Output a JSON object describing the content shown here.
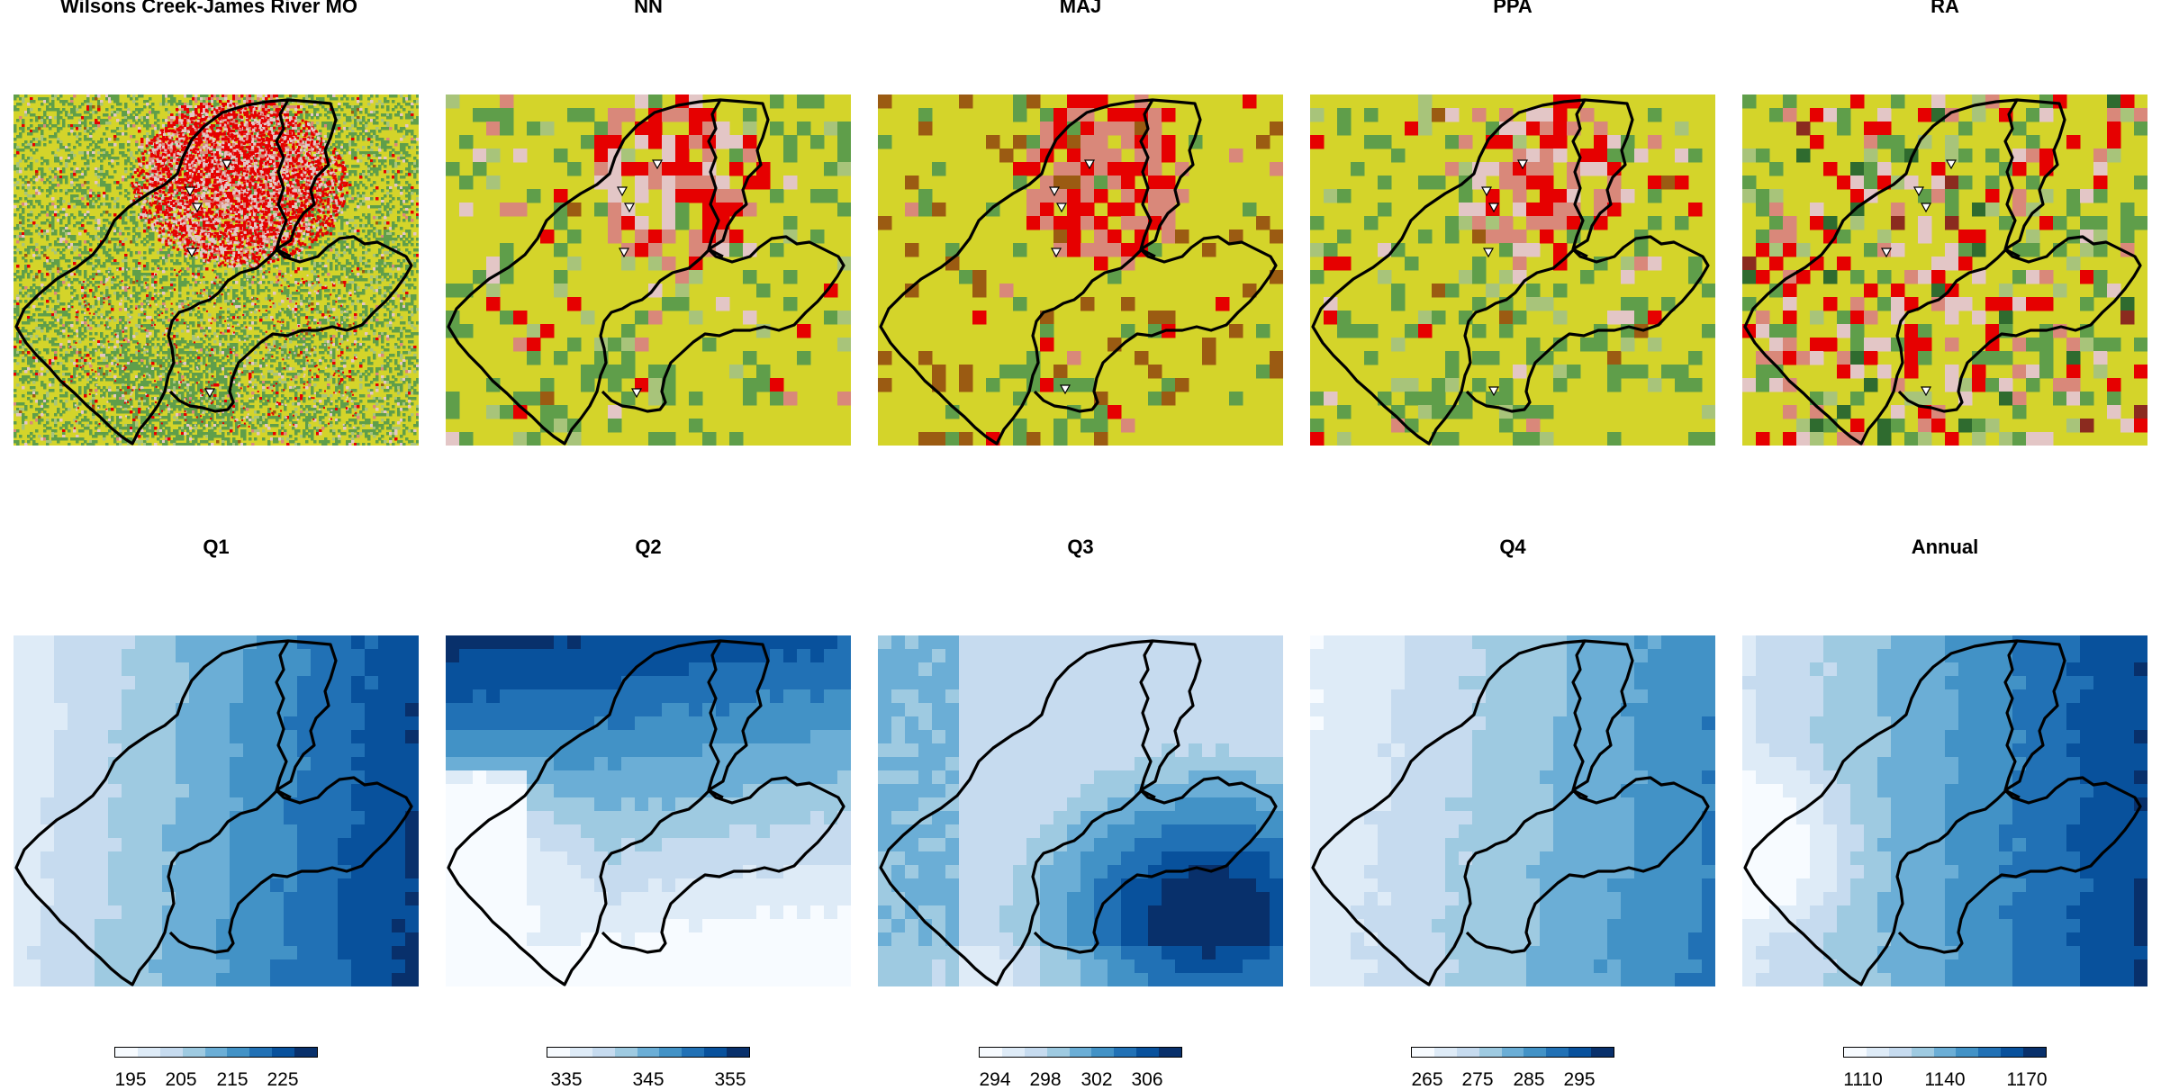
{
  "top_row": [
    {
      "title": "Wilsons Creek-James River MO",
      "kind": "landcover"
    },
    {
      "title": "NN",
      "kind": "landcover"
    },
    {
      "title": "MAJ",
      "kind": "landcover"
    },
    {
      "title": "PPA",
      "kind": "landcover"
    },
    {
      "title": "RA",
      "kind": "landcover"
    }
  ],
  "bottom_row": [
    {
      "title": "Q1",
      "kind": "precip",
      "gradient": "w-to-e",
      "ticks": [
        "195",
        "205",
        "215",
        "225"
      ]
    },
    {
      "title": "Q2",
      "kind": "precip",
      "gradient": "n-dark-se-light",
      "ticks": [
        "335",
        "345",
        "355"
      ]
    },
    {
      "title": "Q3",
      "kind": "precip",
      "gradient": "se-dark",
      "ticks": [
        "294",
        "298",
        "302",
        "306"
      ]
    },
    {
      "title": "Q4",
      "kind": "precip",
      "gradient": "w-to-e",
      "ticks": [
        "265",
        "275",
        "285",
        "295"
      ]
    },
    {
      "title": "Annual",
      "kind": "precip",
      "gradient": "w-light-e-dark",
      "ticks": [
        "1110",
        "1140",
        "1170"
      ]
    }
  ],
  "colors": {
    "landcover_base": "#d4d42a",
    "developed_high": "#e60000",
    "developed_med": "#d9887a",
    "developed_low": "#e3c6c6",
    "forest": "#5f9e4a",
    "pasture": "#a8c47a",
    "deep_forest": "#2f6b2f",
    "water": "#4a6fb5",
    "blues": [
      "#f7fbff",
      "#deebf7",
      "#c6dbef",
      "#9ecae1",
      "#6baed6",
      "#4292c6",
      "#2171b5",
      "#08519c",
      "#08306b"
    ]
  }
}
